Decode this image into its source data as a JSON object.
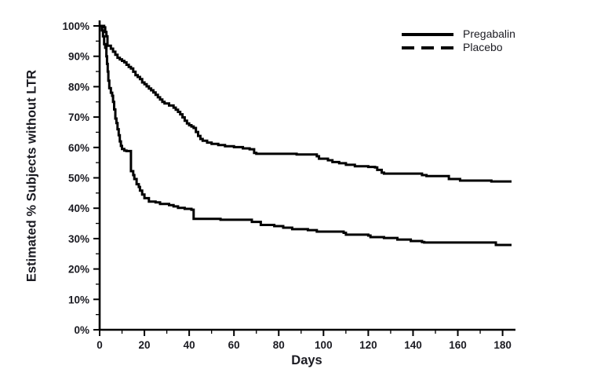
{
  "figure": {
    "background": "#ffffff",
    "text_color": "#1b1b22",
    "line_color": "#000000"
  },
  "chart_data": {
    "type": "line",
    "subtype": "kaplan_meier_step",
    "title": "",
    "xlabel": "Days",
    "ylabel": "Estimated % Subjects without LTR",
    "xlim": [
      0,
      184
    ],
    "ylim": [
      0,
      100
    ],
    "grid": false,
    "legend_position": "top-right",
    "x_major_ticks": [
      0,
      20,
      40,
      60,
      80,
      100,
      120,
      140,
      160,
      180
    ],
    "x_tick_labels": [
      "0",
      "20",
      "40",
      "60",
      "80",
      "100",
      "120",
      "140",
      "160",
      "180"
    ],
    "x_minor_ticks": [
      10,
      30,
      50,
      70,
      90,
      110,
      130,
      150,
      170
    ],
    "y_major_ticks": [
      0,
      10,
      20,
      30,
      40,
      50,
      60,
      70,
      80,
      90,
      100
    ],
    "y_tick_labels": [
      "0%",
      "10%",
      "20%",
      "30%",
      "40%",
      "50%",
      "60%",
      "70%",
      "80%",
      "90%",
      "100%"
    ],
    "y_minor_ticks": [
      5,
      15,
      25,
      35,
      45,
      55,
      65,
      75,
      85,
      95
    ],
    "series": [
      {
        "name": "Pregabalin",
        "legend_style": "solid",
        "plot_style": "solid_step",
        "color": "#000000",
        "points": [
          [
            0,
            100
          ],
          [
            2,
            99.5
          ],
          [
            2.5,
            98
          ],
          [
            3,
            96.6
          ],
          [
            3.5,
            93.5
          ],
          [
            5,
            92.5
          ],
          [
            6,
            91.5
          ],
          [
            7,
            90.5
          ],
          [
            8,
            89.5
          ],
          [
            9,
            89
          ],
          [
            10,
            88.5
          ],
          [
            11,
            88
          ],
          [
            12,
            87.2
          ],
          [
            13,
            86.5
          ],
          [
            14,
            86
          ],
          [
            15,
            84.9
          ],
          [
            16,
            83.8
          ],
          [
            17,
            83.2
          ],
          [
            18,
            82.5
          ],
          [
            19,
            81.4
          ],
          [
            20,
            80.8
          ],
          [
            21,
            80.1
          ],
          [
            22,
            79.4
          ],
          [
            23,
            78.8
          ],
          [
            24,
            78.1
          ],
          [
            25,
            77.3
          ],
          [
            26,
            76.5
          ],
          [
            27,
            75.8
          ],
          [
            28,
            75
          ],
          [
            29,
            74.5
          ],
          [
            31,
            73.8
          ],
          [
            33,
            73.1
          ],
          [
            34,
            72.4
          ],
          [
            35,
            71.7
          ],
          [
            36,
            70.9
          ],
          [
            37,
            69.9
          ],
          [
            38,
            68.8
          ],
          [
            39,
            67.9
          ],
          [
            40,
            67.3
          ],
          [
            41,
            66.9
          ],
          [
            42,
            66.4
          ],
          [
            43,
            65.1
          ],
          [
            44,
            63.8
          ],
          [
            45,
            62.8
          ],
          [
            46,
            62.2
          ],
          [
            48,
            61.6
          ],
          [
            50,
            61.2
          ],
          [
            53,
            60.8
          ],
          [
            56,
            60.4
          ],
          [
            60,
            60.1
          ],
          [
            64,
            59.7
          ],
          [
            67,
            59.4
          ],
          [
            69,
            58.2
          ],
          [
            70,
            57.9
          ],
          [
            88,
            57.7
          ],
          [
            97,
            57.1
          ],
          [
            98,
            56.3
          ],
          [
            102,
            55.8
          ],
          [
            104,
            55.2
          ],
          [
            107,
            54.8
          ],
          [
            110,
            54.3
          ],
          [
            114,
            53.8
          ],
          [
            120,
            53.6
          ],
          [
            123,
            53.4
          ],
          [
            124,
            52.6
          ],
          [
            126,
            51.7
          ],
          [
            127,
            51.4
          ],
          [
            144,
            50.9
          ],
          [
            146,
            50.6
          ],
          [
            156,
            49.6
          ],
          [
            161,
            49.1
          ],
          [
            175,
            48.8
          ],
          [
            184,
            48.8
          ]
        ]
      },
      {
        "name": "Placebo",
        "legend_style": "dashed",
        "plot_style": "solid_step",
        "color": "#000000",
        "points": [
          [
            0,
            100
          ],
          [
            1,
            98.5
          ],
          [
            1.5,
            96.6
          ],
          [
            2,
            94
          ],
          [
            2.5,
            92.8
          ],
          [
            3,
            90
          ],
          [
            3.3,
            87.5
          ],
          [
            3.6,
            85
          ],
          [
            3.9,
            82
          ],
          [
            4.3,
            79.5
          ],
          [
            5,
            78
          ],
          [
            5.6,
            77
          ],
          [
            6,
            75
          ],
          [
            6.5,
            72.5
          ],
          [
            7,
            69.5
          ],
          [
            7.5,
            68
          ],
          [
            8,
            66
          ],
          [
            8.5,
            64
          ],
          [
            9,
            62
          ],
          [
            9.5,
            60.5
          ],
          [
            10,
            59.5
          ],
          [
            11,
            59
          ],
          [
            12,
            58.8
          ],
          [
            14,
            52.2
          ],
          [
            15,
            50.9
          ],
          [
            15.5,
            49.6
          ],
          [
            16.5,
            47.9
          ],
          [
            17.5,
            47
          ],
          [
            18,
            45.8
          ],
          [
            19,
            44.5
          ],
          [
            20,
            43.3
          ],
          [
            22,
            42.2
          ],
          [
            25,
            41.9
          ],
          [
            27,
            41.4
          ],
          [
            31,
            41
          ],
          [
            33,
            40.6
          ],
          [
            35,
            40.1
          ],
          [
            38,
            39.8
          ],
          [
            41,
            39.5
          ],
          [
            42,
            36.5
          ],
          [
            54,
            36.2
          ],
          [
            68,
            35.5
          ],
          [
            72,
            34.5
          ],
          [
            78,
            34.1
          ],
          [
            82,
            33.6
          ],
          [
            86,
            33.1
          ],
          [
            93,
            32.8
          ],
          [
            97,
            32.3
          ],
          [
            109,
            31.9
          ],
          [
            110,
            31.3
          ],
          [
            120,
            31
          ],
          [
            121,
            30.5
          ],
          [
            127,
            30.2
          ],
          [
            133,
            29.7
          ],
          [
            139,
            29.2
          ],
          [
            144,
            28.9
          ],
          [
            145,
            28.7
          ],
          [
            177,
            27.9
          ],
          [
            184,
            27.9
          ]
        ]
      }
    ]
  }
}
